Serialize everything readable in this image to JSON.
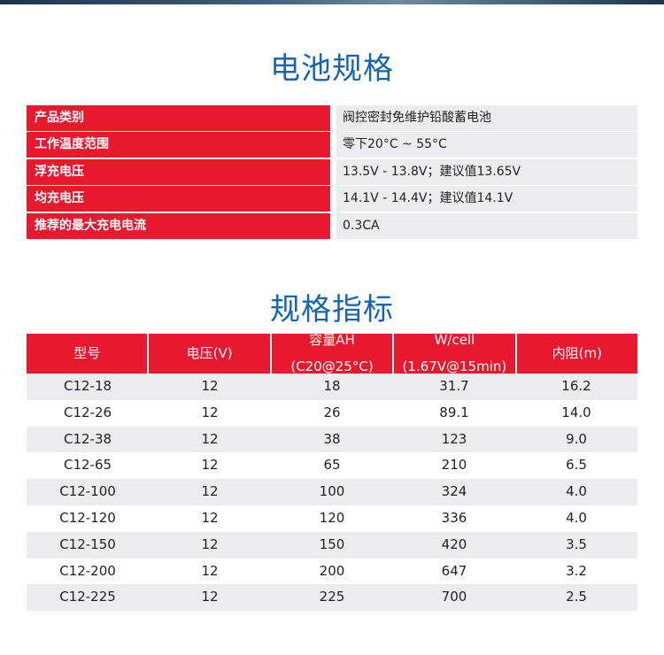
{
  "title1": "电池规格",
  "title2": "规格指标",
  "spec": [
    {
      "k": "产品类别",
      "v": "阀控密封免维护铅酸蓄电池"
    },
    {
      "k": "工作温度范围",
      "v": "零下20°C ~ 55°C"
    },
    {
      "k": "浮充电压",
      "v": "13.5V - 13.8V；建议值13.65V"
    },
    {
      "k": "均充电压",
      "v": "14.1V - 14.4V；建议值14.1V"
    },
    {
      "k": "推荐的最大充电电流",
      "v": "0.3CA"
    }
  ],
  "headers": [
    [
      "型号",
      ""
    ],
    [
      "电压(V)",
      ""
    ],
    [
      "容量AH",
      "(C20@25°C)"
    ],
    [
      "W/cell",
      "(1.67V@15min)"
    ],
    [
      "内阻(m)",
      ""
    ]
  ],
  "rows": [
    [
      "C12-18",
      "12",
      "18",
      "31.7",
      "16.2"
    ],
    [
      "C12-26",
      "12",
      "26",
      "89.1",
      "14.0"
    ],
    [
      "C12-38",
      "12",
      "38",
      "123",
      "9.0"
    ],
    [
      "C12-65",
      "12",
      "65",
      "210",
      "6.5"
    ],
    [
      "C12-100",
      "12",
      "100",
      "324",
      "4.0"
    ],
    [
      "C12-120",
      "12",
      "120",
      "336",
      "4.0"
    ],
    [
      "C12-150",
      "12",
      "150",
      "420",
      "3.5"
    ],
    [
      "C12-200",
      "12",
      "200",
      "647",
      "3.2"
    ],
    [
      "C12-225",
      "12",
      "225",
      "700",
      "2.5"
    ]
  ]
}
